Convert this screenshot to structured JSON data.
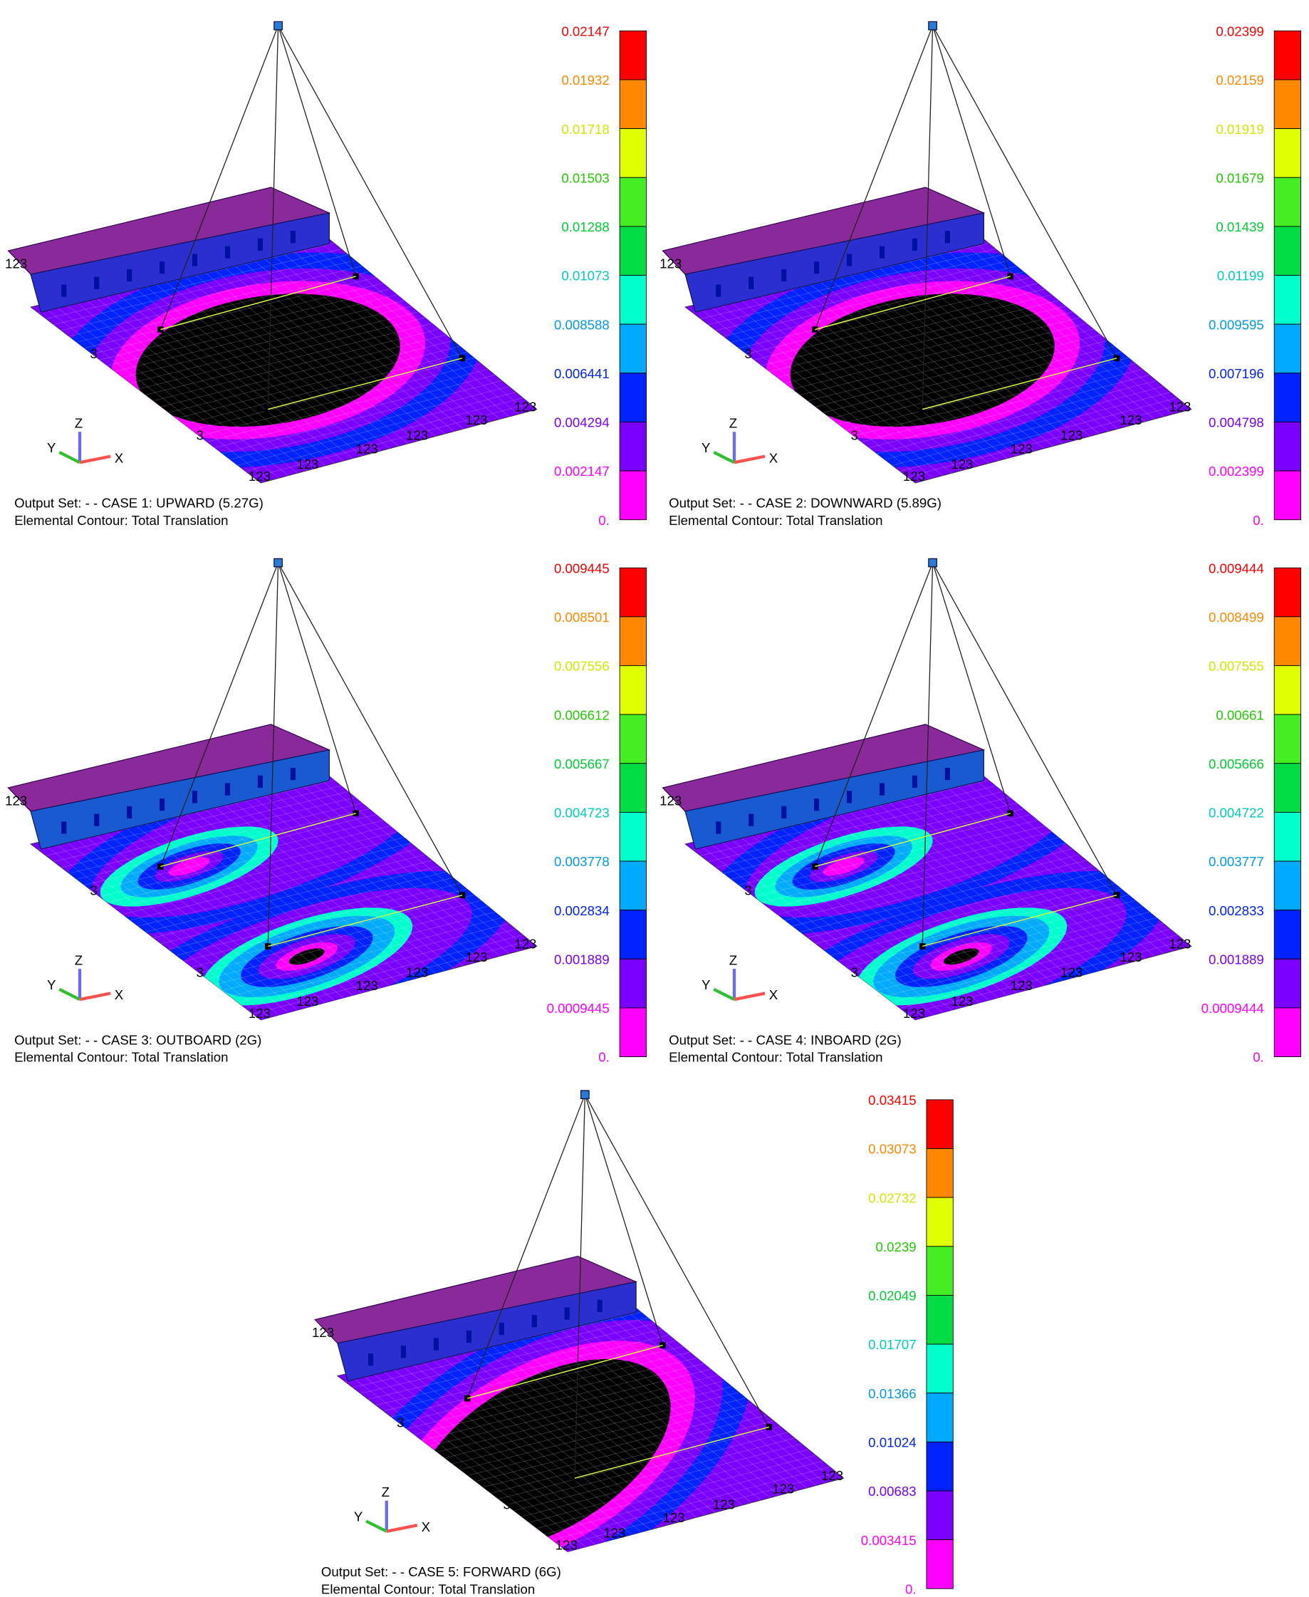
{
  "panels": [
    {
      "output_set": "Output Set: - - CASE 1: UPWARD (5.27G)",
      "contour": "Elemental Contour: Total Translation",
      "layout": "single",
      "legend": [
        "0.02147",
        "0.01932",
        "0.01718",
        "0.01503",
        "0.01288",
        "0.01073",
        "0.008588",
        "0.006441",
        "0.004294",
        "0.002147",
        "0."
      ],
      "labels": [
        "123",
        "3",
        "3",
        "123",
        "123",
        "123",
        "123",
        "123",
        "123"
      ],
      "axes": [
        "X",
        "Y",
        "Z"
      ]
    },
    {
      "output_set": "Output Set: - - CASE 2: DOWNWARD (5.89G)",
      "contour": "Elemental Contour: Total Translation",
      "layout": "single",
      "legend": [
        "0.02399",
        "0.02159",
        "0.01919",
        "0.01679",
        "0.01439",
        "0.01199",
        "0.009595",
        "0.007196",
        "0.004798",
        "0.002399",
        "0."
      ],
      "labels": [
        "123",
        "3",
        "3",
        "123",
        "123",
        "123",
        "123",
        "123",
        "123"
      ],
      "axes": [
        "X",
        "Y",
        "Z"
      ]
    },
    {
      "output_set": "Output Set: - - CASE 3: OUTBOARD (2G)",
      "contour": "Elemental Contour: Total Translation",
      "layout": "double",
      "legend": [
        "0.009445",
        "0.008501",
        "0.007556",
        "0.006612",
        "0.005667",
        "0.004723",
        "0.003778",
        "0.002834",
        "0.001889",
        "0.0009445",
        "0."
      ],
      "labels": [
        "123",
        "3",
        "3",
        "123",
        "123",
        "123",
        "123",
        "123",
        "123"
      ],
      "axes": [
        "X",
        "Y",
        "Z"
      ]
    },
    {
      "output_set": "Output Set: - - CASE 4: INBOARD (2G)",
      "contour": "Elemental Contour: Total Translation",
      "layout": "double",
      "legend": [
        "0.009444",
        "0.008499",
        "0.007555",
        "0.00661",
        "0.005666",
        "0.004722",
        "0.003777",
        "0.002833",
        "0.001889",
        "0.0009444",
        "0."
      ],
      "labels": [
        "123",
        "3",
        "3",
        "123",
        "123",
        "123",
        "123",
        "123",
        "123"
      ],
      "axes": [
        "X",
        "Y",
        "Z"
      ]
    },
    {
      "output_set": "Output Set: - - CASE 5: FORWARD (6G)",
      "contour": "Elemental Contour: Total Translation",
      "layout": "forward",
      "legend": [
        "0.03415",
        "0.03073",
        "0.02732",
        "0.0239",
        "0.02049",
        "0.01707",
        "0.01366",
        "0.01024",
        "0.00683",
        "0.003415",
        "0."
      ],
      "labels": [
        "123",
        "3",
        "3",
        "123",
        "123",
        "123",
        "123",
        "123",
        "123"
      ],
      "axes": [
        "X",
        "Y",
        "Z"
      ]
    }
  ],
  "colors": [
    "#ff0000",
    "#ff8800",
    "#e0ff00",
    "#44ee22",
    "#00dd44",
    "#00ffcc",
    "#00aaff",
    "#0022ff",
    "#7a00ff",
    "#ff00ff"
  ],
  "label_colors": [
    "#ff0000",
    "#ff8800",
    "#d4e600",
    "#22cc00",
    "#00cc33",
    "#00ccbb",
    "#0099ee",
    "#0022ff",
    "#7a00ff",
    "#ff00ff",
    "#ff00ff"
  ]
}
